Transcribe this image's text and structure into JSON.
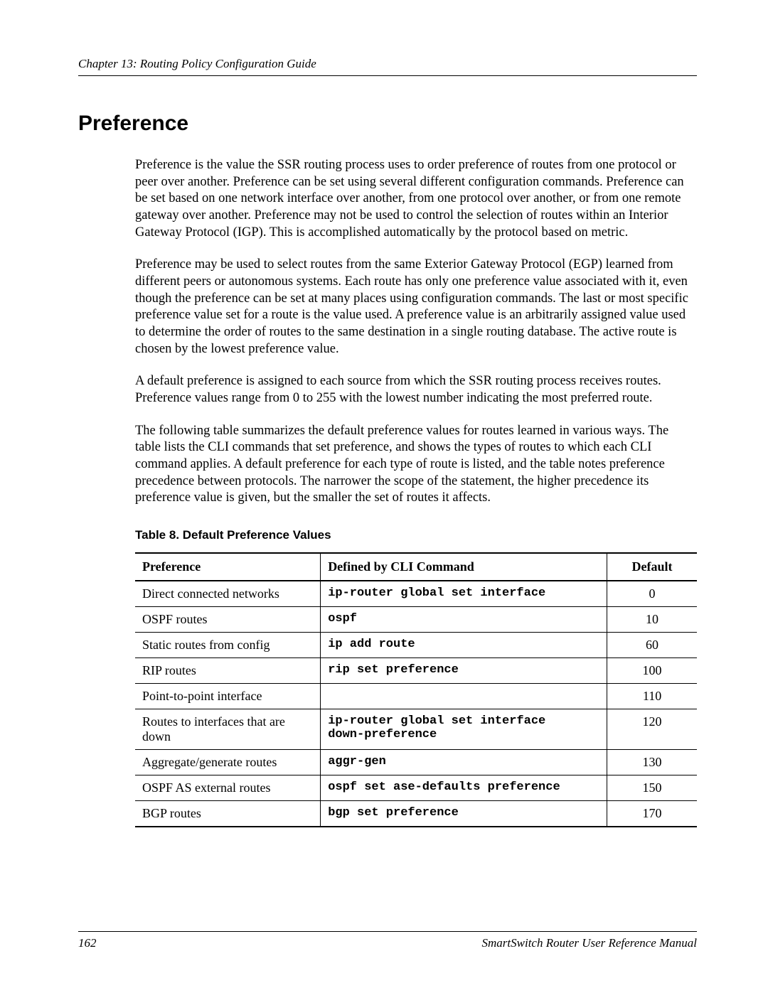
{
  "header": {
    "chapter": "Chapter 13: Routing Policy Configuration Guide"
  },
  "section": {
    "title": "Preference"
  },
  "paragraphs": {
    "p1": "Preference is the value the SSR routing process uses to order preference of routes from one protocol or peer over another. Preference can be set using several different configuration commands. Preference can be set based on one network interface over another, from one protocol over another, or from one remote gateway over another. Preference may not be used to control the selection of routes within an Interior Gateway Protocol (IGP). This is accomplished automatically by the protocol based on metric.",
    "p2": "Preference may be used to select routes from the same Exterior Gateway Protocol (EGP) learned from different peers or autonomous systems. Each route has only one preference value associated with it, even though the preference can be set at many places using configuration commands. The last or most specific preference value set for a route is the value used. A preference value is an arbitrarily assigned value used to determine the order of routes to the same destination in a single routing database. The active route is chosen by the lowest preference value.",
    "p3": "A default preference is assigned to each source from which the SSR routing process receives routes. Preference values range from 0 to 255 with the lowest number indicating the most preferred route.",
    "p4": "The following table summarizes the default preference values for routes learned in various ways. The table lists the CLI commands that set preference, and shows the types of routes to which each CLI command applies. A default preference for each type of route is listed, and the table notes preference precedence between protocols. The narrower the scope of the statement, the higher precedence its preference value is given, but the smaller the set of routes it affects."
  },
  "table": {
    "caption": "Table 8.  Default Preference Values",
    "columns": {
      "c1": "Preference",
      "c2": "Defined by CLI Command",
      "c3": "Default"
    },
    "rows": [
      {
        "pref": "Direct connected networks",
        "cmd": "ip-router global set interface",
        "def": "0"
      },
      {
        "pref": "OSPF routes",
        "cmd": "ospf",
        "def": "10"
      },
      {
        "pref": "Static routes from config",
        "cmd": "ip add route",
        "def": "60"
      },
      {
        "pref": "RIP routes",
        "cmd": "rip set preference",
        "def": "100"
      },
      {
        "pref": "Point-to-point interface",
        "cmd": "",
        "def": "110"
      },
      {
        "pref": "Routes to interfaces that are down",
        "cmd": "ip-router global set interface\n   down-preference",
        "def": "120"
      },
      {
        "pref": "Aggregate/generate routes",
        "cmd": "aggr-gen",
        "def": "130"
      },
      {
        "pref": "OSPF AS external routes",
        "cmd": "ospf set ase-defaults preference",
        "def": "150"
      },
      {
        "pref": "BGP routes",
        "cmd": "bgp set preference",
        "def": "170"
      }
    ]
  },
  "footer": {
    "page": "162",
    "manual": "SmartSwitch Router User Reference Manual"
  }
}
